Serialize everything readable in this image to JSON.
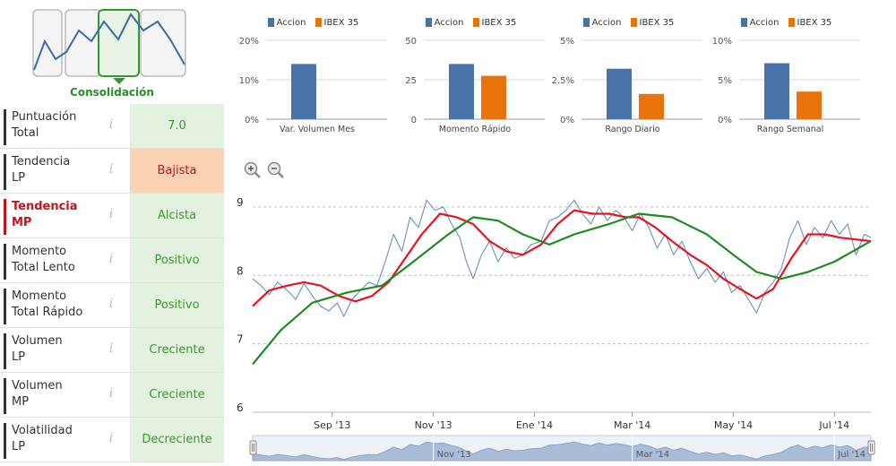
{
  "consolidation": {
    "label": "Consolidación",
    "icon": "trend-consolidation-icon"
  },
  "indicators": [
    {
      "label_line1": "Puntuación",
      "label_line2": "Total",
      "value": "7.0",
      "status": "positive",
      "highlight": false
    },
    {
      "label_line1": "Tendencia",
      "label_line2": "LP",
      "value": "Bajista",
      "status": "negative",
      "highlight": false
    },
    {
      "label_line1": "Tendencia",
      "label_line2": "MP",
      "value": "Alcista",
      "status": "positive",
      "highlight": true
    },
    {
      "label_line1": "Momento",
      "label_line2": "Total Lento",
      "value": "Positivo",
      "status": "positive",
      "highlight": false
    },
    {
      "label_line1": "Momento",
      "label_line2": "Total Rápido",
      "value": "Positivo",
      "status": "positive",
      "highlight": false
    },
    {
      "label_line1": "Volumen",
      "label_line2": "LP",
      "value": "Creciente",
      "status": "positive",
      "highlight": false
    },
    {
      "label_line1": "Volumen",
      "label_line2": "MP",
      "value": "Creciente",
      "status": "positive",
      "highlight": false
    },
    {
      "label_line1": "Volatilidad",
      "label_line2": "LP",
      "value": "Decreciente",
      "status": "positive",
      "highlight": false
    }
  ],
  "colors": {
    "accion": "#4a72aa",
    "ibex": "#e8720c",
    "price_line": "#6b8fc2",
    "mm_short": "#e8131e",
    "mm_long": "#1f8a1f",
    "positive_bg": "#e2f2de",
    "negative_bg": "#fbd3b4",
    "navigator_fill": "#a9bcd8"
  },
  "chart_data": [
    {
      "type": "bar",
      "legend": [
        "Accion",
        "IBEX 35"
      ],
      "yticks": [
        "20%",
        "10%",
        "0%"
      ],
      "ylim": [
        0,
        20
      ],
      "categories": [
        "Var. Volumen Mes"
      ],
      "series": [
        {
          "name": "Accion",
          "values": [
            14
          ]
        },
        {
          "name": "IBEX 35",
          "values": [
            0
          ]
        }
      ]
    },
    {
      "type": "bar",
      "legend": [
        "Accion",
        "IBEX 35"
      ],
      "yticks": [
        "50",
        "25",
        "0"
      ],
      "ylim": [
        0,
        50
      ],
      "categories": [
        "Momento Rápido"
      ],
      "series": [
        {
          "name": "Accion",
          "values": [
            35
          ]
        },
        {
          "name": "IBEX 35",
          "values": [
            27.5
          ]
        }
      ]
    },
    {
      "type": "bar",
      "legend": [
        "Accion",
        "IBEX 35"
      ],
      "yticks": [
        "5%",
        "2.5%",
        "0%"
      ],
      "ylim": [
        0,
        5
      ],
      "categories": [
        "Rango Diario"
      ],
      "series": [
        {
          "name": "Accion",
          "values": [
            3.2
          ]
        },
        {
          "name": "IBEX 35",
          "values": [
            1.6
          ]
        }
      ]
    },
    {
      "type": "bar",
      "legend": [
        "Accion",
        "IBEX 35"
      ],
      "yticks": [
        "10%",
        "5%",
        "0%"
      ],
      "ylim": [
        0,
        10
      ],
      "categories": [
        "Rango Semanal"
      ],
      "series": [
        {
          "name": "Accion",
          "values": [
            7.1
          ]
        },
        {
          "name": "IBEX 35",
          "values": [
            3.5
          ]
        }
      ]
    },
    {
      "type": "line",
      "xlim": [
        "2013-07-15",
        "2014-07-23"
      ],
      "ylim": [
        6,
        9.3
      ],
      "yticks": [
        "9",
        "8",
        "7",
        "6"
      ],
      "xticks": [
        "Sep '13",
        "Nov '13",
        "Ene '14",
        "Mar '14",
        "May '14",
        "Jul '14"
      ],
      "xtick_dates": [
        "2013-09-01",
        "2013-11-01",
        "2014-01-01",
        "2014-03-01",
        "2014-05-01",
        "2014-07-01"
      ],
      "grid": true,
      "series": [
        {
          "name": "price",
          "points": [
            [
              "2013-07-15",
              7.95
            ],
            [
              "2013-07-20",
              7.85
            ],
            [
              "2013-07-25",
              7.72
            ],
            [
              "2013-07-30",
              7.9
            ],
            [
              "2013-08-05",
              7.78
            ],
            [
              "2013-08-10",
              7.65
            ],
            [
              "2013-08-15",
              7.88
            ],
            [
              "2013-08-20",
              7.7
            ],
            [
              "2013-08-25",
              7.55
            ],
            [
              "2013-08-30",
              7.48
            ],
            [
              "2013-09-04",
              7.6
            ],
            [
              "2013-09-08",
              7.4
            ],
            [
              "2013-09-13",
              7.65
            ],
            [
              "2013-09-18",
              7.78
            ],
            [
              "2013-09-23",
              7.9
            ],
            [
              "2013-09-28",
              7.85
            ],
            [
              "2013-10-03",
              8.2
            ],
            [
              "2013-10-08",
              8.6
            ],
            [
              "2013-10-13",
              8.35
            ],
            [
              "2013-10-18",
              8.85
            ],
            [
              "2013-10-23",
              8.7
            ],
            [
              "2013-10-28",
              9.1
            ],
            [
              "2013-11-02",
              8.95
            ],
            [
              "2013-11-07",
              9.0
            ],
            [
              "2013-11-12",
              8.75
            ],
            [
              "2013-11-17",
              8.55
            ],
            [
              "2013-11-21",
              8.2
            ],
            [
              "2013-11-25",
              7.95
            ],
            [
              "2013-11-30",
              8.3
            ],
            [
              "2013-12-05",
              8.5
            ],
            [
              "2013-12-10",
              8.2
            ],
            [
              "2013-12-15",
              8.4
            ],
            [
              "2013-12-20",
              8.25
            ],
            [
              "2013-12-25",
              8.3
            ],
            [
              "2013-12-30",
              8.45
            ],
            [
              "2014-01-05",
              8.5
            ],
            [
              "2014-01-10",
              8.8
            ],
            [
              "2014-01-15",
              8.85
            ],
            [
              "2014-01-20",
              8.95
            ],
            [
              "2014-01-25",
              9.1
            ],
            [
              "2014-01-30",
              8.9
            ],
            [
              "2014-02-04",
              8.75
            ],
            [
              "2014-02-09",
              9.0
            ],
            [
              "2014-02-14",
              8.8
            ],
            [
              "2014-02-19",
              8.95
            ],
            [
              "2014-02-24",
              8.85
            ],
            [
              "2014-03-01",
              8.65
            ],
            [
              "2014-03-06",
              8.9
            ],
            [
              "2014-03-11",
              8.7
            ],
            [
              "2014-03-16",
              8.4
            ],
            [
              "2014-03-21",
              8.6
            ],
            [
              "2014-03-26",
              8.3
            ],
            [
              "2014-03-31",
              8.5
            ],
            [
              "2014-04-05",
              8.2
            ],
            [
              "2014-04-10",
              7.95
            ],
            [
              "2014-04-15",
              8.1
            ],
            [
              "2014-04-20",
              7.9
            ],
            [
              "2014-04-25",
              8.05
            ],
            [
              "2014-04-30",
              7.75
            ],
            [
              "2014-05-05",
              7.85
            ],
            [
              "2014-05-10",
              7.65
            ],
            [
              "2014-05-15",
              7.45
            ],
            [
              "2014-05-20",
              7.75
            ],
            [
              "2014-05-25",
              7.9
            ],
            [
              "2014-05-30",
              8.1
            ],
            [
              "2014-06-04",
              8.55
            ],
            [
              "2014-06-09",
              8.8
            ],
            [
              "2014-06-14",
              8.45
            ],
            [
              "2014-06-19",
              8.7
            ],
            [
              "2014-06-24",
              8.55
            ],
            [
              "2014-06-29",
              8.8
            ],
            [
              "2014-07-04",
              8.6
            ],
            [
              "2014-07-09",
              8.75
            ],
            [
              "2014-07-14",
              8.3
            ],
            [
              "2014-07-19",
              8.6
            ],
            [
              "2014-07-23",
              8.55
            ]
          ]
        },
        {
          "name": "mm-short",
          "points": [
            [
              "2013-07-15",
              7.55
            ],
            [
              "2013-07-25",
              7.78
            ],
            [
              "2013-08-05",
              7.85
            ],
            [
              "2013-08-15",
              7.9
            ],
            [
              "2013-08-25",
              7.85
            ],
            [
              "2013-09-05",
              7.7
            ],
            [
              "2013-09-15",
              7.62
            ],
            [
              "2013-09-25",
              7.7
            ],
            [
              "2013-10-05",
              7.9
            ],
            [
              "2013-10-15",
              8.25
            ],
            [
              "2013-10-25",
              8.6
            ],
            [
              "2013-11-05",
              8.9
            ],
            [
              "2013-11-15",
              8.85
            ],
            [
              "2013-11-25",
              8.75
            ],
            [
              "2013-12-05",
              8.5
            ],
            [
              "2013-12-15",
              8.35
            ],
            [
              "2013-12-25",
              8.3
            ],
            [
              "2014-01-05",
              8.45
            ],
            [
              "2014-01-15",
              8.75
            ],
            [
              "2014-01-25",
              8.95
            ],
            [
              "2014-02-05",
              8.9
            ],
            [
              "2014-02-15",
              8.9
            ],
            [
              "2014-02-25",
              8.85
            ],
            [
              "2014-03-05",
              8.85
            ],
            [
              "2014-03-15",
              8.7
            ],
            [
              "2014-03-25",
              8.5
            ],
            [
              "2014-04-05",
              8.3
            ],
            [
              "2014-04-15",
              8.15
            ],
            [
              "2014-04-25",
              7.95
            ],
            [
              "2014-05-05",
              7.8
            ],
            [
              "2014-05-15",
              7.66
            ],
            [
              "2014-05-25",
              7.8
            ],
            [
              "2014-06-05",
              8.25
            ],
            [
              "2014-06-15",
              8.6
            ],
            [
              "2014-06-25",
              8.6
            ],
            [
              "2014-07-05",
              8.55
            ],
            [
              "2014-07-23",
              8.5
            ]
          ]
        },
        {
          "name": "mm-long",
          "points": [
            [
              "2013-07-15",
              6.7
            ],
            [
              "2013-08-01",
              7.2
            ],
            [
              "2013-08-20",
              7.6
            ],
            [
              "2013-09-10",
              7.75
            ],
            [
              "2013-10-01",
              7.85
            ],
            [
              "2013-10-20",
              8.2
            ],
            [
              "2013-11-10",
              8.6
            ],
            [
              "2013-11-25",
              8.85
            ],
            [
              "2013-12-10",
              8.8
            ],
            [
              "2013-12-25",
              8.6
            ],
            [
              "2014-01-10",
              8.45
            ],
            [
              "2014-01-25",
              8.6
            ],
            [
              "2014-02-15",
              8.75
            ],
            [
              "2014-03-05",
              8.9
            ],
            [
              "2014-03-25",
              8.85
            ],
            [
              "2014-04-15",
              8.6
            ],
            [
              "2014-05-01",
              8.3
            ],
            [
              "2014-05-15",
              8.05
            ],
            [
              "2014-05-30",
              7.95
            ],
            [
              "2014-06-15",
              8.05
            ],
            [
              "2014-07-01",
              8.2
            ],
            [
              "2014-07-23",
              8.5
            ]
          ]
        }
      ]
    }
  ],
  "navigator": {
    "labels": [
      "Nov '13",
      "Mar '14",
      "Jul '14"
    ],
    "label_dates": [
      "2013-11-01",
      "2014-03-01",
      "2014-07-01"
    ]
  }
}
